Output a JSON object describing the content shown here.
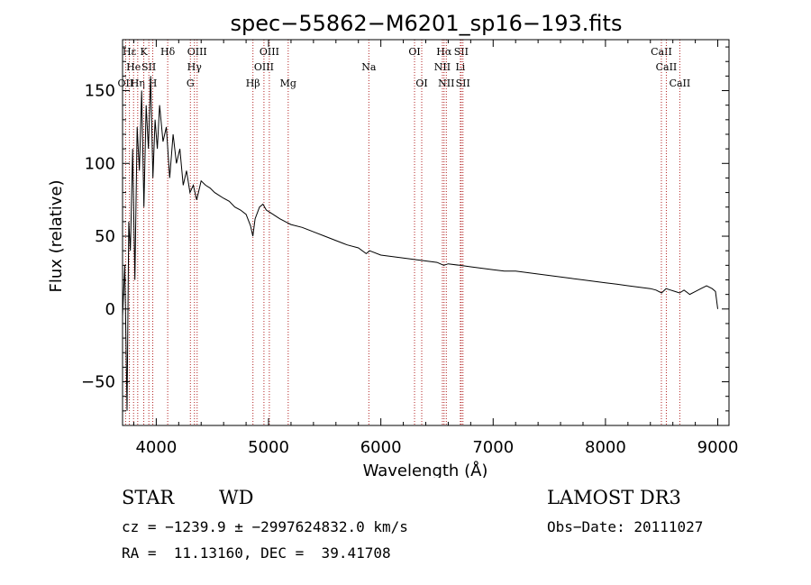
{
  "chart_data": {
    "type": "line",
    "title": "spec−55862−M6201_sp16−193.fits",
    "xlabel": "Wavelength (Å)",
    "ylabel": "Flux (relative)",
    "xlim": [
      3700,
      9100
    ],
    "ylim": [
      -80,
      185
    ],
    "xticks": [
      4000,
      5000,
      6000,
      7000,
      8000,
      9000
    ],
    "xtick_labels": [
      "4000",
      "5000",
      "6000",
      "7000",
      "8000",
      "9000"
    ],
    "yticks": [
      -50,
      0,
      50,
      100,
      150
    ],
    "ytick_labels": [
      "−50",
      "0",
      "50",
      "100",
      "150"
    ],
    "series": [
      {
        "name": "flux",
        "x": [
          3700,
          3720,
          3740,
          3755,
          3770,
          3790,
          3810,
          3830,
          3850,
          3870,
          3890,
          3910,
          3930,
          3950,
          3970,
          3990,
          4010,
          4030,
          4060,
          4090,
          4120,
          4150,
          4180,
          4210,
          4240,
          4270,
          4300,
          4330,
          4360,
          4400,
          4440,
          4480,
          4520,
          4560,
          4600,
          4650,
          4700,
          4750,
          4800,
          4840,
          4860,
          4880,
          4920,
          4950,
          4980,
          5020,
          5060,
          5100,
          5150,
          5200,
          5300,
          5400,
          5500,
          5600,
          5700,
          5800,
          5870,
          5900,
          6000,
          6100,
          6200,
          6300,
          6400,
          6500,
          6560,
          6600,
          6700,
          6800,
          6900,
          7000,
          7100,
          7200,
          7300,
          7400,
          7500,
          7600,
          7700,
          7800,
          7900,
          8000,
          8100,
          8200,
          8300,
          8400,
          8450,
          8500,
          8540,
          8580,
          8620,
          8660,
          8700,
          8750,
          8800,
          8850,
          8900,
          8950,
          8980,
          9000
        ],
        "values": [
          -5,
          30,
          -70,
          60,
          40,
          110,
          20,
          125,
          95,
          150,
          70,
          140,
          110,
          160,
          90,
          130,
          110,
          140,
          115,
          125,
          90,
          120,
          100,
          110,
          85,
          95,
          80,
          85,
          75,
          88,
          85,
          83,
          80,
          78,
          76,
          74,
          70,
          68,
          65,
          57,
          50,
          62,
          70,
          72,
          68,
          66,
          64,
          62,
          60,
          58,
          56,
          53,
          50,
          47,
          44,
          42,
          38,
          40,
          37,
          36,
          35,
          34,
          33,
          32,
          30,
          31,
          30,
          29,
          28,
          27,
          26,
          26,
          25,
          24,
          23,
          22,
          21,
          20,
          19,
          18,
          17,
          16,
          15,
          14,
          13,
          11,
          14,
          13,
          12,
          11,
          13,
          10,
          12,
          14,
          16,
          14,
          12,
          0
        ]
      }
    ],
    "lines": [
      {
        "label": "Hε",
        "x": 3761,
        "row": 1,
        "color": "#b22222"
      },
      {
        "label": "OII",
        "x": 3727,
        "row": 3,
        "color": "#b22222"
      },
      {
        "label": "He",
        "x": 3798,
        "row": 2,
        "color": "#b22222"
      },
      {
        "label": "Hη",
        "x": 3835,
        "row": 3,
        "color": "#b22222"
      },
      {
        "label": "K",
        "x": 3889,
        "row": 1,
        "color": "#b22222"
      },
      {
        "label": "SII",
        "x": 3934,
        "row": 2,
        "color": "#b22222"
      },
      {
        "label": "H",
        "x": 3969,
        "row": 3,
        "color": "#b22222"
      },
      {
        "label": "Hδ",
        "x": 4102,
        "row": 1,
        "color": "#b22222"
      },
      {
        "label": "OIII",
        "x": 4364,
        "row": 1,
        "color": "#b22222"
      },
      {
        "label": "Hγ",
        "x": 4340,
        "row": 2,
        "color": "#b22222"
      },
      {
        "label": "G",
        "x": 4304,
        "row": 3,
        "color": "#b22222"
      },
      {
        "label": "Hβ",
        "x": 4861,
        "row": 3,
        "color": "#b22222"
      },
      {
        "label": "OIII",
        "x": 5007,
        "row": 1,
        "color": "#b22222"
      },
      {
        "label": "OIII",
        "x": 4959,
        "row": 2,
        "color": "#b22222"
      },
      {
        "label": "Mg",
        "x": 5175,
        "row": 3,
        "color": "#b22222"
      },
      {
        "label": "Na",
        "x": 5893,
        "row": 2,
        "color": "#b22222"
      },
      {
        "label": "OI",
        "x": 6300,
        "row": 1,
        "color": "#b22222"
      },
      {
        "label": "OI",
        "x": 6364,
        "row": 3,
        "color": "#b22222"
      },
      {
        "label": "Hα",
        "x": 6563,
        "row": 1,
        "color": "#b22222"
      },
      {
        "label": "NII",
        "x": 6548,
        "row": 2,
        "color": "#b22222"
      },
      {
        "label": "NII",
        "x": 6583,
        "row": 3,
        "color": "#b22222"
      },
      {
        "label": "SII",
        "x": 6716,
        "row": 1,
        "color": "#b22222"
      },
      {
        "label": "Li",
        "x": 6708,
        "row": 2,
        "color": "#b22222"
      },
      {
        "label": "SII",
        "x": 6731,
        "row": 3,
        "color": "#b22222"
      },
      {
        "label": "CaII",
        "x": 8498,
        "row": 1,
        "color": "#b22222"
      },
      {
        "label": "CaII",
        "x": 8542,
        "row": 2,
        "color": "#b22222"
      },
      {
        "label": "CaII",
        "x": 8662,
        "row": 3,
        "color": "#b22222"
      }
    ]
  },
  "info": {
    "class": "STAR",
    "subclass": "WD",
    "survey": "LAMOST DR3",
    "cz": "cz = −1239.9 ± −2997624832.0 km/s",
    "obs_date": "Obs−Date: 20111027",
    "radec": "RA =  11.13160, DEC =  39.41708"
  }
}
